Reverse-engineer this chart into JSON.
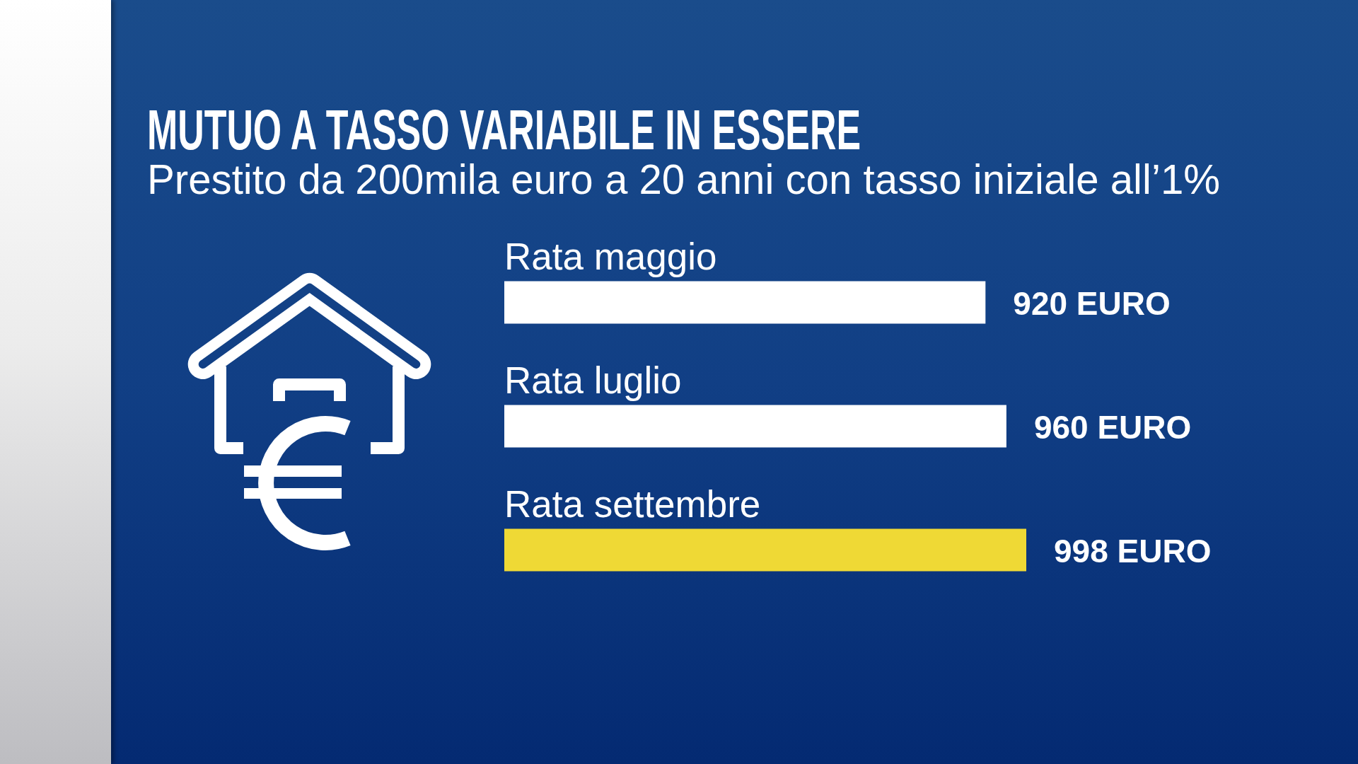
{
  "chart_data": {
    "type": "bar",
    "orientation": "horizontal",
    "title": "MUTUO A TASSO VARIABILE IN ESSERE",
    "subtitle": "Prestito da 200mila euro a 20 anni con tasso iniziale all’1%",
    "categories": [
      "Rata maggio",
      "Rata luglio",
      "Rata settembre"
    ],
    "values": [
      920,
      960,
      998
    ],
    "value_labels": [
      "920 EURO",
      "960 EURO",
      "998 EURO"
    ],
    "colors": [
      "#ffffff",
      "#ffffff",
      "#efd935"
    ]
  }
}
